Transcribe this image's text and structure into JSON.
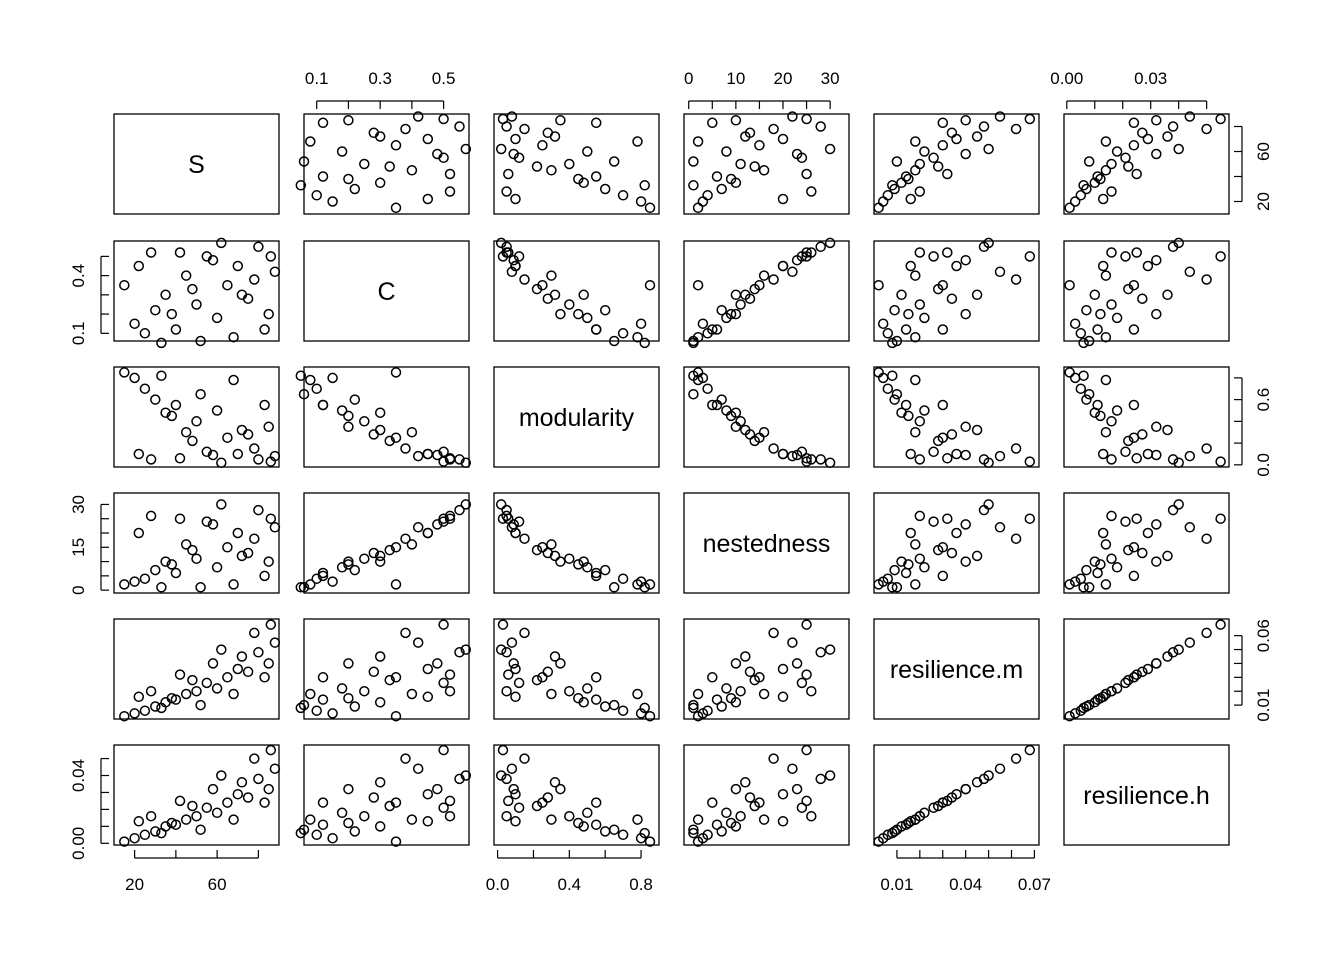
{
  "chart_data": {
    "type": "scatter",
    "title": "",
    "variables": [
      {
        "name": "S",
        "range": [
          10,
          90
        ],
        "ticks": [
          20,
          40,
          60,
          80
        ],
        "tick_labels": [
          "20",
          "60"
        ]
      },
      {
        "name": "C",
        "range": [
          0.06,
          0.58
        ],
        "ticks": [
          0.1,
          0.2,
          0.3,
          0.4,
          0.5
        ],
        "tick_labels": [
          "0.1",
          "0.3",
          "0.5"
        ]
      },
      {
        "name": "modularity",
        "range": [
          -0.02,
          0.9
        ],
        "ticks": [
          0.0,
          0.2,
          0.4,
          0.6,
          0.8
        ],
        "tick_labels": [
          "0.0",
          "0.4",
          "0.8"
        ]
      },
      {
        "name": "nestedness",
        "range": [
          -1,
          34
        ],
        "ticks": [
          0,
          5,
          10,
          15,
          20,
          25,
          30
        ],
        "tick_labels": [
          "0",
          "10",
          "20",
          "30"
        ]
      },
      {
        "name": "resilience.m",
        "range": [
          0.0,
          0.072
        ],
        "ticks": [
          0.01,
          0.02,
          0.03,
          0.04,
          0.05,
          0.06,
          0.07
        ],
        "tick_labels": [
          "0.01",
          "0.04",
          "0.07"
        ]
      },
      {
        "name": "resilience.h",
        "range": [
          -0.001,
          0.058
        ],
        "ticks": [
          0.0,
          0.01,
          0.02,
          0.03,
          0.04,
          0.05
        ],
        "tick_labels": [
          "0.00",
          "0.03"
        ]
      }
    ],
    "right_axis_ticks": [
      {
        "ticks": [
          20,
          40,
          60,
          80
        ],
        "tick_labels": [
          "20",
          "60"
        ]
      },
      null,
      {
        "ticks": [
          0.0,
          0.2,
          0.4,
          0.6,
          0.8
        ],
        "tick_labels": [
          "0.0",
          "0.6"
        ]
      },
      null,
      {
        "ticks": [
          0.01,
          0.02,
          0.03,
          0.04,
          0.05,
          0.06
        ],
        "tick_labels": [
          "0.01",
          "0.06"
        ]
      },
      null
    ],
    "left_axis_ticks": [
      null,
      {
        "ticks": [
          0.1,
          0.2,
          0.3,
          0.4,
          0.5
        ],
        "tick_labels": [
          "0.1",
          "0.4"
        ]
      },
      null,
      {
        "ticks": [
          0,
          5,
          10,
          15,
          20,
          25,
          30
        ],
        "tick_labels": [
          "0",
          "15",
          "30"
        ]
      },
      null,
      {
        "ticks": [
          0.0,
          0.01,
          0.02,
          0.03,
          0.04,
          0.05
        ],
        "tick_labels": [
          "0.00",
          "0.04"
        ]
      }
    ],
    "top_axis_ticks": [
      null,
      {
        "ticks": [
          0.1,
          0.2,
          0.3,
          0.4,
          0.5
        ],
        "tick_labels": [
          "0.1",
          "0.3",
          "0.5"
        ]
      },
      null,
      {
        "ticks": [
          0,
          5,
          10,
          15,
          20,
          25,
          30
        ],
        "tick_labels": [
          "0",
          "10",
          "20",
          "30"
        ]
      },
      null,
      {
        "ticks": [
          0.0,
          0.01,
          0.02,
          0.03,
          0.04,
          0.05
        ],
        "tick_labels": [
          "0.00",
          "0.03"
        ]
      }
    ],
    "bottom_axis_ticks": [
      {
        "ticks": [
          20,
          40,
          60,
          80
        ],
        "tick_labels": [
          "20",
          "60"
        ]
      },
      null,
      {
        "ticks": [
          0.0,
          0.2,
          0.4,
          0.6,
          0.8
        ],
        "tick_labels": [
          "0.0",
          "0.4",
          "0.8"
        ]
      },
      null,
      {
        "ticks": [
          0.01,
          0.02,
          0.03,
          0.04,
          0.05,
          0.06,
          0.07
        ],
        "tick_labels": [
          "0.01",
          "0.04",
          "0.07"
        ]
      },
      null
    ],
    "sample_points": [
      [
        15,
        0.35,
        0.85,
        2,
        0.002,
        0.001
      ],
      [
        20,
        0.15,
        0.8,
        3,
        0.004,
        0.003
      ],
      [
        25,
        0.1,
        0.7,
        4,
        0.006,
        0.005
      ],
      [
        30,
        0.22,
        0.6,
        7,
        0.009,
        0.007
      ],
      [
        35,
        0.3,
        0.48,
        10,
        0.012,
        0.01
      ],
      [
        40,
        0.12,
        0.55,
        6,
        0.014,
        0.011
      ],
      [
        45,
        0.4,
        0.3,
        16,
        0.018,
        0.014
      ],
      [
        50,
        0.25,
        0.4,
        11,
        0.02,
        0.016
      ],
      [
        55,
        0.5,
        0.12,
        24,
        0.026,
        0.021
      ],
      [
        60,
        0.18,
        0.5,
        8,
        0.022,
        0.018
      ],
      [
        65,
        0.35,
        0.25,
        15,
        0.03,
        0.024
      ],
      [
        70,
        0.45,
        0.1,
        20,
        0.036,
        0.029
      ],
      [
        75,
        0.28,
        0.28,
        13,
        0.034,
        0.027
      ],
      [
        80,
        0.55,
        0.05,
        28,
        0.048,
        0.038
      ],
      [
        85,
        0.2,
        0.35,
        10,
        0.04,
        0.032
      ],
      [
        88,
        0.42,
        0.08,
        22,
        0.055,
        0.044
      ],
      [
        42,
        0.52,
        0.06,
        25,
        0.032,
        0.025
      ],
      [
        68,
        0.08,
        0.78,
        2,
        0.018,
        0.014
      ],
      [
        22,
        0.45,
        0.1,
        20,
        0.016,
        0.013
      ],
      [
        78,
        0.38,
        0.15,
        18,
        0.062,
        0.05
      ],
      [
        58,
        0.48,
        0.09,
        23,
        0.04,
        0.032
      ],
      [
        33,
        0.05,
        0.82,
        1,
        0.008,
        0.006
      ],
      [
        83,
        0.12,
        0.55,
        5,
        0.03,
        0.024
      ],
      [
        48,
        0.33,
        0.22,
        14,
        0.028,
        0.022
      ],
      [
        62,
        0.57,
        0.02,
        30,
        0.05,
        0.04
      ],
      [
        52,
        0.06,
        0.65,
        1,
        0.01,
        0.008
      ],
      [
        72,
        0.3,
        0.32,
        12,
        0.045,
        0.036
      ],
      [
        38,
        0.2,
        0.45,
        9,
        0.015,
        0.012
      ],
      [
        28,
        0.52,
        0.05,
        26,
        0.02,
        0.016
      ],
      [
        86,
        0.5,
        0.03,
        25,
        0.068,
        0.055
      ]
    ]
  }
}
